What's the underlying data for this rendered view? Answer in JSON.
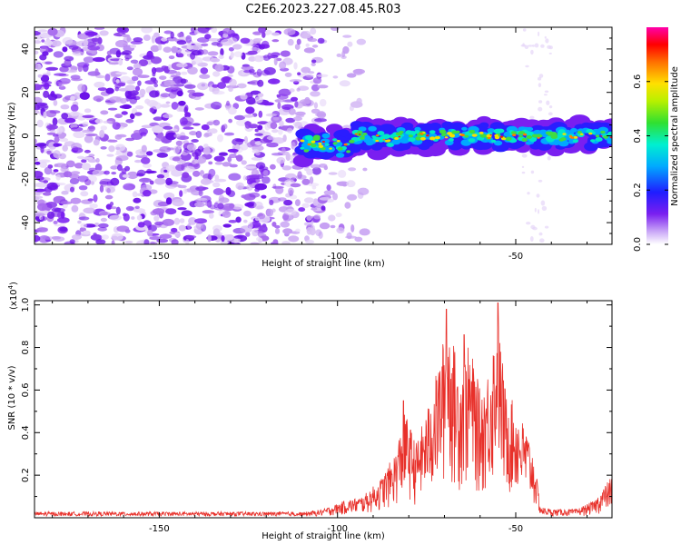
{
  "title": "C2E6.2023.227.08.45.R03",
  "chart_data": [
    {
      "type": "heatmap",
      "xlabel": "Height of straight line (km)",
      "ylabel": "Frequency (Hz)",
      "xlim": [
        -185,
        -23
      ],
      "ylim": [
        -50,
        50
      ],
      "xticks": [
        -150,
        -100,
        -50
      ],
      "yticks": [
        -40,
        -20,
        0,
        20,
        40
      ],
      "colorbar": {
        "label": "Normalized spectral amplitude",
        "range": [
          0,
          0.8
        ],
        "ticks": [
          "0.0",
          "0.2",
          "0.4",
          "0.6"
        ]
      },
      "structure": {
        "noise_region_x": [
          -185,
          -100
        ],
        "signal_band_center_hz": 0,
        "signal_band_x": [
          -110,
          -23
        ],
        "signal_band_halfwidth_hz": 6
      }
    },
    {
      "type": "line",
      "xlabel": "Height of straight line (km)",
      "ylabel": "SNR (10 * v/v)",
      "scale_label": "(x10",
      "scale_exponent": "4",
      "scale_suffix": ")",
      "xlim": [
        -185,
        -23
      ],
      "ylim": [
        0,
        1.02
      ],
      "xticks": [
        -150,
        -100,
        -50
      ],
      "yticks": [
        "0.2",
        "0.4",
        "0.6",
        "0.8",
        "1.0"
      ],
      "series": [
        {
          "color": "#e8302a",
          "envelope": [
            [
              -185,
              0.02
            ],
            [
              -110,
              0.025
            ],
            [
              -104,
              0.04
            ],
            [
              -98,
              0.08
            ],
            [
              -93,
              0.1
            ],
            [
              -88,
              0.18
            ],
            [
              -84,
              0.3
            ],
            [
              -81,
              0.5
            ],
            [
              -78,
              0.35
            ],
            [
              -75,
              0.5
            ],
            [
              -72,
              0.7
            ],
            [
              -69,
              0.95
            ],
            [
              -66,
              0.7
            ],
            [
              -63,
              0.82
            ],
            [
              -60,
              0.6
            ],
            [
              -58,
              0.68
            ],
            [
              -55,
              0.98
            ],
            [
              -53,
              0.62
            ],
            [
              -50,
              0.52
            ],
            [
              -47,
              0.42
            ],
            [
              -45,
              0.3
            ],
            [
              -43,
              0.05
            ],
            [
              -40,
              0.04
            ],
            [
              -33,
              0.04
            ],
            [
              -28,
              0.08
            ],
            [
              -25,
              0.15
            ],
            [
              -23,
              0.2
            ]
          ],
          "peaks": [
            [
              -69.5,
              0.98
            ],
            [
              -55,
              1.01
            ],
            [
              -64.5,
              0.86
            ],
            [
              -81.5,
              0.55
            ]
          ]
        }
      ]
    }
  ]
}
